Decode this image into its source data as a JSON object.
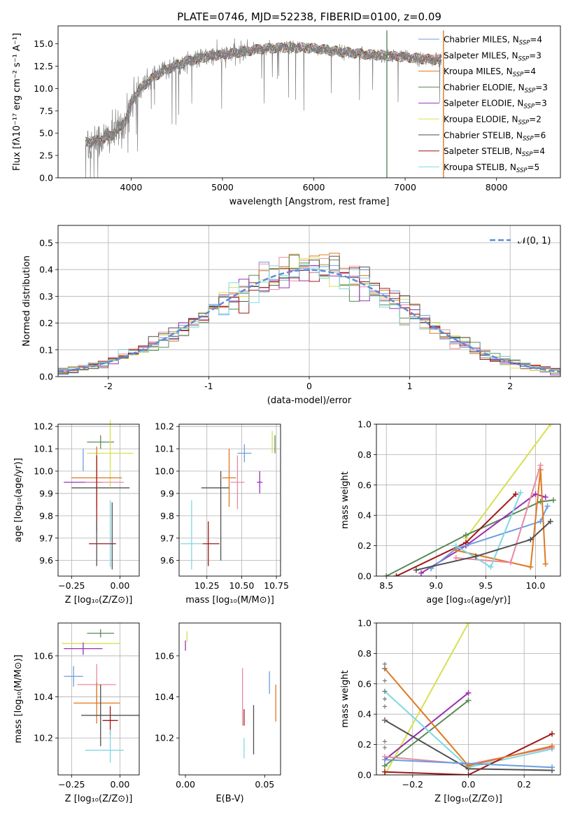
{
  "colors": {
    "chabrier_miles": "#6a9ee0",
    "salpeter_miles": "#e88aa0",
    "kroupa_miles": "#e07820",
    "chabrier_elodie": "#5a8a5a",
    "salpeter_elodie": "#9a30b0",
    "kroupa_elodie": "#d8e050",
    "chabrier_stelib": "#505050",
    "salpeter_stelib": "#a01818",
    "kroupa_stelib": "#80d8e0",
    "normal": "#5f8bd8",
    "data": "#808080"
  },
  "chart_data": [
    {
      "id": "spectrum",
      "type": "line",
      "title": "PLATE=0746, MJD=52238, FIBERID=0100, z=0.09",
      "xlabel": "wavelength [Angstrom, rest frame]",
      "ylabel": "Flux [fλ10⁻¹⁷ erg cm⁻² s⁻¹ A⁻¹]",
      "xlim": [
        3200,
        8700
      ],
      "ylim": [
        0,
        17
      ],
      "xticks": [
        4000,
        5000,
        6000,
        7000,
        8000
      ],
      "yticks": [
        0.0,
        2.5,
        5.0,
        7.5,
        10.0,
        12.5,
        15.0
      ],
      "grid": false,
      "legend_position": "right",
      "continuum": {
        "x": [
          3500,
          3650,
          3800,
          3950,
          4000,
          4100,
          4250,
          4400,
          4600,
          4850,
          5100,
          5400,
          5700,
          6000,
          6300,
          6600,
          6900,
          7200,
          7400
        ],
        "y": [
          4.0,
          4.2,
          4.8,
          6.5,
          8.5,
          10.0,
          11.3,
          12.2,
          13.0,
          13.6,
          13.9,
          14.4,
          14.6,
          14.5,
          14.1,
          13.8,
          13.6,
          13.3,
          13.2
        ]
      },
      "series": [
        {
          "name": "Chabrier MILES, Nₛₛₚ=4",
          "label": "Chabrier MILES, N",
          "sub": "SSP",
          "tail": "=4",
          "color_key": "chabrier_miles"
        },
        {
          "name": "Salpeter MILES, Nₛₛₚ=3",
          "label": "Salpeter MILES, N",
          "sub": "SSP",
          "tail": "=3",
          "color_key": "salpeter_miles"
        },
        {
          "name": "Kroupa MILES, Nₛₛₚ=4",
          "label": "Kroupa MILES, N",
          "sub": "SSP",
          "tail": "=4",
          "color_key": "kroupa_miles"
        },
        {
          "name": "Chabrier ELODIE, Nₛₛₚ=3",
          "label": "Chabrier ELODIE, N",
          "sub": "SSP",
          "tail": "=3",
          "color_key": "chabrier_elodie"
        },
        {
          "name": "Salpeter ELODIE, Nₛₛₚ=3",
          "label": "Salpeter ELODIE, N",
          "sub": "SSP",
          "tail": "=3",
          "color_key": "salpeter_elodie"
        },
        {
          "name": "Kroupa ELODIE, Nₛₛₚ=2",
          "label": "Kroupa ELODIE, N",
          "sub": "SSP",
          "tail": "=2",
          "color_key": "kroupa_elodie"
        },
        {
          "name": "Chabrier STELIB, Nₛₛₚ=6",
          "label": "Chabrier STELIB, N",
          "sub": "SSP",
          "tail": "=6",
          "color_key": "chabrier_stelib"
        },
        {
          "name": "Salpeter STELIB, Nₛₛₚ=4",
          "label": "Salpeter STELIB, N",
          "sub": "SSP",
          "tail": "=4",
          "color_key": "salpeter_stelib"
        },
        {
          "name": "Kroupa STELIB, Nₛₛₚ=5",
          "label": "Kroupa STELIB, N",
          "sub": "SSP",
          "tail": "=5",
          "color_key": "kroupa_stelib"
        }
      ],
      "vertical_spikes": [
        {
          "x": 6800,
          "color_key": "chabrier_elodie"
        },
        {
          "x": 7420,
          "color_key": "kroupa_miles"
        }
      ]
    },
    {
      "id": "residuals",
      "type": "histogram",
      "xlabel": "(data-model)/error",
      "ylabel": "Normed distribution",
      "xlim": [
        -2.5,
        2.5
      ],
      "ylim": [
        0,
        0.565
      ],
      "xticks": [
        -2,
        -1,
        0,
        1,
        2
      ],
      "yticks": [
        0.0,
        0.1,
        0.2,
        0.3,
        0.4,
        0.5
      ],
      "grid": true,
      "legend": {
        "label": "𝒩(0, 1)",
        "position": "top-right"
      },
      "bin_width": 0.1
    },
    {
      "id": "age_vs_Z",
      "type": "errorbar",
      "xlabel": "Z [log₁₀(Z/Z⊙)]",
      "ylabel": "age  [log₁₀(age/yr)]",
      "xlim": [
        -0.32,
        0.1
      ],
      "ylim": [
        9.53,
        10.21
      ],
      "xticks": [
        -0.25,
        0.0
      ],
      "xticklabels": [
        "−0.25",
        "0.00"
      ],
      "yticks": [
        9.6,
        9.7,
        9.8,
        9.9,
        10.0,
        10.1,
        10.2
      ],
      "grid": true,
      "points": [
        {
          "x": -0.1,
          "y": 10.13,
          "xerr": 0.07,
          "yerr": 0.03,
          "color_key": "chabrier_elodie"
        },
        {
          "x": -0.05,
          "y": 10.08,
          "xerr": 0.12,
          "yerr": 0.15,
          "color_key": "kroupa_elodie"
        },
        {
          "x": -0.19,
          "y": 10.05,
          "xerr": 0.0,
          "yerr": 0.05,
          "color_key": "chabrier_miles"
        },
        {
          "x": -0.12,
          "y": 9.97,
          "xerr": 0.13,
          "yerr": 0.14,
          "color_key": "kroupa_miles"
        },
        {
          "x": -0.19,
          "y": 9.95,
          "xerr": 0.1,
          "yerr": 0.0,
          "color_key": "salpeter_elodie"
        },
        {
          "x": -0.08,
          "y": 9.95,
          "xerr": 0.1,
          "yerr": 0.0,
          "color_key": "salpeter_miles"
        },
        {
          "x": -0.1,
          "y": 9.925,
          "xerr": 0.15,
          "yerr": 0.0,
          "color_key": "chabrier_stelib"
        },
        {
          "x": -0.12,
          "y": 9.9,
          "xerr": 0.0,
          "yerr": 0.17,
          "color_key": "salpeter_stelib"
        },
        {
          "x": -0.05,
          "y": 9.72,
          "xerr": 0.0,
          "yerr": 0.15,
          "color_key": "kroupa_stelib"
        },
        {
          "x": -0.09,
          "y": 9.675,
          "xerr": 0.07,
          "yerr": 0.0,
          "color_key": "salpeter_stelib"
        },
        {
          "x": -0.12,
          "y": 9.675,
          "xerr": 0.0,
          "yerr": 0.1,
          "color_key": "chabrier_stelib"
        },
        {
          "x": -0.04,
          "y": 9.71,
          "xerr": 0.0,
          "yerr": 0.15,
          "color_key": "chabrier_stelib"
        }
      ]
    },
    {
      "id": "age_vs_mass",
      "type": "errorbar",
      "xlabel": "mass [log₁₀(M/M⊙)]",
      "ylabel": "",
      "xlim": [
        10.05,
        10.78
      ],
      "ylim": [
        9.53,
        10.21
      ],
      "xticks": [
        10.25,
        10.5,
        10.75
      ],
      "xticklabels": [
        "10.25",
        "10.50",
        "10.75"
      ],
      "yticks": [
        9.6,
        9.7,
        9.8,
        9.9,
        10.0,
        10.1,
        10.2
      ],
      "grid": true,
      "points": [
        {
          "x": 10.72,
          "y": 10.13,
          "xerr": 0.0,
          "yerr": 0.05,
          "color_key": "kroupa_elodie"
        },
        {
          "x": 10.74,
          "y": 10.12,
          "xerr": 0.0,
          "yerr": 0.04,
          "color_key": "chabrier_elodie"
        },
        {
          "x": 10.52,
          "y": 10.08,
          "xerr": 0.05,
          "yerr": 0.04,
          "color_key": "chabrier_miles"
        },
        {
          "x": 10.41,
          "y": 9.97,
          "xerr": 0.05,
          "yerr": 0.13,
          "color_key": "kroupa_miles"
        },
        {
          "x": 10.63,
          "y": 9.95,
          "xerr": 0.02,
          "yerr": 0.05,
          "color_key": "salpeter_elodie"
        },
        {
          "x": 10.47,
          "y": 9.95,
          "xerr": 0.05,
          "yerr": 0.12,
          "color_key": "salpeter_miles"
        },
        {
          "x": 10.31,
          "y": 9.925,
          "xerr": 0.1,
          "yerr": 0.0,
          "color_key": "chabrier_stelib"
        },
        {
          "x": 10.35,
          "y": 9.8,
          "xerr": 0.0,
          "yerr": 0.2,
          "color_key": "chabrier_stelib"
        },
        {
          "x": 10.14,
          "y": 9.715,
          "xerr": 0.0,
          "yerr": 0.155,
          "color_key": "kroupa_stelib"
        },
        {
          "x": 10.26,
          "y": 9.675,
          "xerr": 0.0,
          "yerr": 0.1,
          "color_key": "salpeter_stelib"
        },
        {
          "x": 10.14,
          "y": 9.675,
          "xerr": 0.08,
          "yerr": 0.0,
          "color_key": "kroupa_stelib"
        },
        {
          "x": 10.28,
          "y": 9.675,
          "xerr": 0.06,
          "yerr": 0.0,
          "color_key": "salpeter_stelib"
        }
      ]
    },
    {
      "id": "weight_vs_age",
      "type": "line",
      "xlabel": "age  [log₁₀(age/yr)]",
      "ylabel": "mass weight",
      "xlim": [
        8.4,
        10.25
      ],
      "ylim": [
        0,
        1.0
      ],
      "xticks": [
        8.5,
        9.0,
        9.5,
        10.0
      ],
      "xticklabels": [
        "8.5",
        "9.0",
        "9.5",
        "10.0"
      ],
      "yticks": [
        0.0,
        0.2,
        0.4,
        0.6,
        0.8,
        1.0
      ],
      "grid": true,
      "series": [
        {
          "color_key": "kroupa_elodie",
          "x": [
            9.3,
            10.15
          ],
          "y": [
            0.25,
            1.0
          ]
        },
        {
          "color_key": "chabrier_elodie",
          "x": [
            8.5,
            9.3,
            10.05,
            10.18
          ],
          "y": [
            0.0,
            0.27,
            0.49,
            0.5
          ]
        },
        {
          "color_key": "salpeter_elodie",
          "x": [
            8.85,
            9.3,
            10.0,
            10.1
          ],
          "y": [
            0.02,
            0.2,
            0.54,
            0.52
          ]
        },
        {
          "color_key": "salpeter_stelib",
          "x": [
            8.6,
            9.3,
            9.8
          ],
          "y": [
            0.0,
            0.22,
            0.54
          ]
        },
        {
          "color_key": "chabrier_miles",
          "x": [
            8.95,
            9.2,
            10.05,
            10.12
          ],
          "y": [
            0.05,
            0.18,
            0.36,
            0.46
          ]
        },
        {
          "color_key": "kroupa_miles",
          "x": [
            9.2,
            9.95,
            10.05,
            10.1
          ],
          "y": [
            0.17,
            0.06,
            0.7,
            0.08
          ]
        },
        {
          "color_key": "salpeter_miles",
          "x": [
            9.2,
            9.75,
            10.05
          ],
          "y": [
            0.12,
            0.09,
            0.73
          ]
        },
        {
          "color_key": "kroupa_stelib",
          "x": [
            9.2,
            9.55,
            9.85
          ],
          "y": [
            0.2,
            0.06,
            0.55
          ]
        },
        {
          "color_key": "chabrier_stelib",
          "x": [
            8.8,
            9.4,
            9.95,
            10.15
          ],
          "y": [
            0.04,
            0.13,
            0.24,
            0.36
          ]
        }
      ]
    },
    {
      "id": "mass_vs_Z",
      "type": "errorbar",
      "xlabel": "Z [log₁₀(Z/Z⊙)]",
      "ylabel": "mass [log₁₀(M/M⊙)]",
      "xlim": [
        -0.32,
        0.1
      ],
      "ylim": [
        10.02,
        10.76
      ],
      "xticks": [
        -0.25,
        0.0
      ],
      "xticklabels": [
        "−0.25",
        "0.00"
      ],
      "yticks": [
        10.2,
        10.4,
        10.6
      ],
      "grid": true,
      "points": [
        {
          "x": -0.1,
          "y": 10.71,
          "xerr": 0.07,
          "yerr": 0.02,
          "color_key": "chabrier_elodie"
        },
        {
          "x": -0.15,
          "y": 10.66,
          "xerr": 0.15,
          "yerr": 0.0,
          "color_key": "kroupa_elodie"
        },
        {
          "x": -0.19,
          "y": 10.635,
          "xerr": 0.1,
          "yerr": 0.03,
          "color_key": "salpeter_elodie"
        },
        {
          "x": -0.24,
          "y": 10.5,
          "xerr": 0.05,
          "yerr": 0.05,
          "color_key": "chabrier_miles"
        },
        {
          "x": -0.12,
          "y": 10.46,
          "xerr": 0.1,
          "yerr": 0.1,
          "color_key": "salpeter_miles"
        },
        {
          "x": -0.12,
          "y": 10.37,
          "xerr": 0.12,
          "yerr": 0.1,
          "color_key": "kroupa_miles"
        },
        {
          "x": -0.05,
          "y": 10.31,
          "xerr": 0.15,
          "yerr": 0.0,
          "color_key": "chabrier_stelib"
        },
        {
          "x": -0.1,
          "y": 10.31,
          "xerr": 0.0,
          "yerr": 0.15,
          "color_key": "chabrier_stelib"
        },
        {
          "x": -0.05,
          "y": 10.285,
          "xerr": 0.04,
          "yerr": 0.07,
          "color_key": "salpeter_stelib"
        },
        {
          "x": -0.08,
          "y": 10.14,
          "xerr": 0.1,
          "yerr": 0.0,
          "color_key": "kroupa_stelib"
        },
        {
          "x": -0.05,
          "y": 10.16,
          "xerr": 0.0,
          "yerr": 0.08,
          "color_key": "kroupa_stelib"
        }
      ]
    },
    {
      "id": "mass_vs_ebv",
      "type": "errorbar",
      "xlabel": "E(B-V)",
      "ylabel": "",
      "xlim": [
        -0.004,
        0.06
      ],
      "ylim": [
        10.02,
        10.76
      ],
      "xticks": [
        0.0,
        0.05
      ],
      "xticklabels": [
        "0.00",
        "0.05"
      ],
      "yticks": [
        10.2,
        10.4,
        10.6
      ],
      "grid": false,
      "points": [
        {
          "x": 0.001,
          "y": 10.695,
          "xerr": 0.0,
          "yerr": 0.025,
          "color_key": "kroupa_elodie"
        },
        {
          "x": 0.0,
          "y": 10.65,
          "xerr": 0.0,
          "yerr": 0.025,
          "color_key": "salpeter_elodie"
        },
        {
          "x": 0.053,
          "y": 10.47,
          "xerr": 0.0,
          "yerr": 0.055,
          "color_key": "chabrier_miles"
        },
        {
          "x": 0.057,
          "y": 10.37,
          "xerr": 0.0,
          "yerr": 0.09,
          "color_key": "kroupa_miles"
        },
        {
          "x": 0.036,
          "y": 10.4,
          "xerr": 0.0,
          "yerr": 0.14,
          "color_key": "salpeter_miles"
        },
        {
          "x": 0.037,
          "y": 10.3,
          "xerr": 0.0,
          "yerr": 0.04,
          "color_key": "salpeter_stelib"
        },
        {
          "x": 0.043,
          "y": 10.24,
          "xerr": 0.0,
          "yerr": 0.12,
          "color_key": "chabrier_stelib"
        },
        {
          "x": 0.037,
          "y": 10.15,
          "xerr": 0.0,
          "yerr": 0.05,
          "color_key": "kroupa_stelib"
        }
      ]
    },
    {
      "id": "weight_vs_Z",
      "type": "line",
      "xlabel": "Z [log₁₀(Z/Z⊙)]",
      "ylabel": "mass weight",
      "xlim": [
        -0.33,
        0.33
      ],
      "ylim": [
        0,
        1.0
      ],
      "xticks": [
        -0.2,
        0.0,
        0.2
      ],
      "xticklabels": [
        "−0.2",
        "0.0",
        "0.2"
      ],
      "yticks": [
        0.0,
        0.2,
        0.4,
        0.6,
        0.8,
        1.0
      ],
      "grid": true,
      "series": [
        {
          "color_key": "kroupa_elodie",
          "x": [
            -0.3,
            0.0
          ],
          "y": [
            0.0,
            1.0
          ]
        },
        {
          "color_key": "salpeter_elodie",
          "x": [
            -0.3,
            0.0
          ],
          "y": [
            0.1,
            0.54
          ]
        },
        {
          "color_key": "chabrier_elodie",
          "x": [
            -0.3,
            0.0
          ],
          "y": [
            0.06,
            0.49
          ]
        },
        {
          "color_key": "kroupa_stelib",
          "x": [
            -0.3,
            0.0,
            0.3
          ],
          "y": [
            0.55,
            0.05,
            0.17
          ]
        },
        {
          "color_key": "chabrier_stelib",
          "x": [
            -0.3,
            0.0,
            0.3
          ],
          "y": [
            0.36,
            0.04,
            0.03
          ]
        },
        {
          "color_key": "salpeter_stelib",
          "x": [
            -0.3,
            0.0,
            0.3
          ],
          "y": [
            0.02,
            0.0,
            0.27
          ]
        },
        {
          "color_key": "salpeter_miles",
          "x": [
            -0.3,
            0.0,
            0.3
          ],
          "y": [
            0.12,
            0.07,
            0.18
          ]
        },
        {
          "color_key": "kroupa_miles",
          "x": [
            -0.3,
            0.0,
            0.3
          ],
          "y": [
            0.7,
            0.06,
            0.19
          ]
        },
        {
          "color_key": "chabrier_miles",
          "x": [
            -0.3,
            0.3
          ],
          "y": [
            0.1,
            0.05
          ]
        }
      ],
      "vertical_ticks_at_left": [
        0.73,
        0.7,
        0.62,
        0.55,
        0.5,
        0.45,
        0.36,
        0.22,
        0.18
      ]
    }
  ]
}
